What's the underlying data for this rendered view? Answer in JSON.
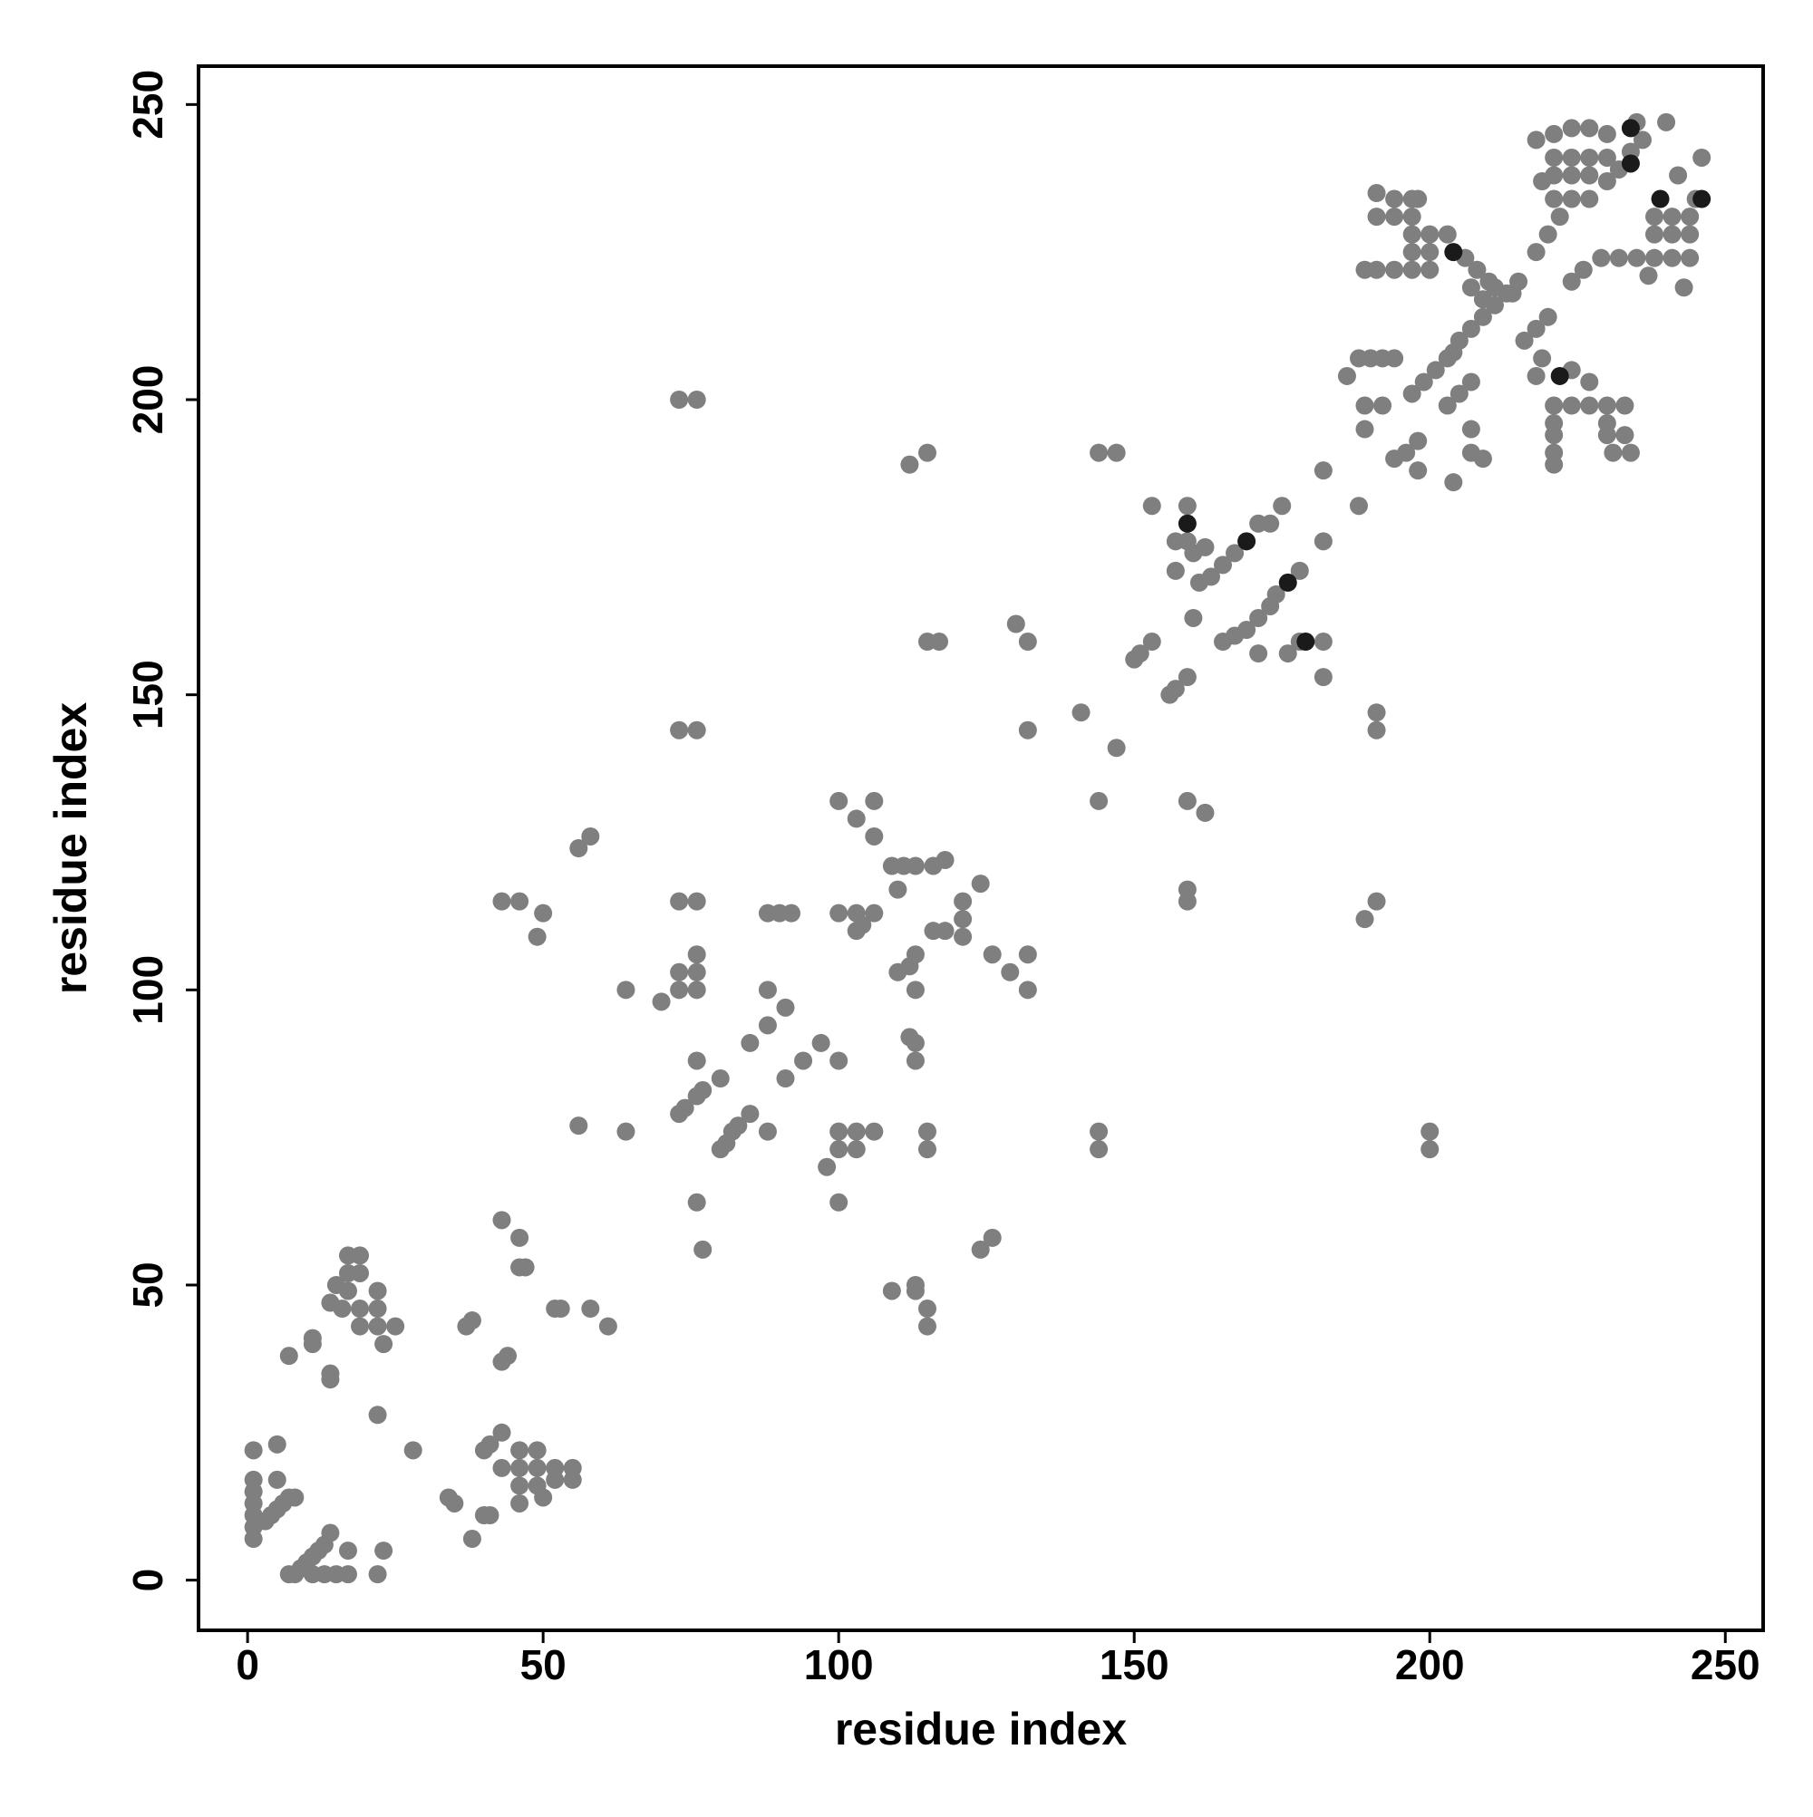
{
  "chart_data": {
    "type": "scatter",
    "xlabel": "residue index",
    "ylabel": "residue index",
    "xlim": [
      -8.3,
      256.4
    ],
    "ylim": [
      -8.5,
      256.5
    ],
    "xticks": [
      0,
      50,
      100,
      150,
      200,
      250
    ],
    "yticks": [
      0,
      50,
      100,
      150,
      200,
      250
    ],
    "grid": false,
    "series": [
      {
        "color": "#7f7f7f",
        "x": [
          1,
          1,
          1,
          1,
          1,
          1,
          1,
          3,
          4,
          5,
          6,
          5,
          5,
          7,
          8,
          7,
          7,
          8,
          9,
          10,
          11,
          12,
          13,
          14,
          13,
          15,
          17,
          17,
          22,
          23,
          11,
          17,
          19,
          17,
          19,
          15,
          17,
          22,
          14,
          16,
          19,
          22,
          19,
          22,
          25,
          23,
          11,
          11,
          14,
          14,
          22,
          28,
          34,
          35,
          38,
          40,
          41,
          40,
          41,
          37,
          38,
          43,
          46,
          46,
          47,
          43,
          44,
          43,
          43,
          46,
          49,
          46,
          49,
          52,
          55,
          46,
          49,
          52,
          55,
          46,
          50,
          53,
          52,
          58,
          61,
          43,
          46,
          50,
          49,
          56,
          58,
          56,
          64,
          64,
          70,
          73,
          76,
          73,
          76,
          73,
          76,
          76,
          73,
          76,
          73,
          76,
          76,
          73,
          74,
          76,
          77,
          80,
          80,
          81,
          82,
          83,
          85,
          85,
          88,
          88,
          88,
          91,
          91,
          94,
          97,
          100,
          88,
          90,
          92,
          76,
          77,
          98,
          100,
          100,
          103,
          103,
          106,
          100,
          100,
          106,
          103,
          106,
          100,
          103,
          106,
          103,
          104,
          109,
          111,
          113,
          116,
          110,
          110,
          112,
          113,
          113,
          112,
          113,
          113,
          116,
          118,
          118,
          121,
          121,
          121,
          124,
          126,
          129,
          132,
          132,
          112,
          115,
          115,
          117,
          115,
          115,
          109,
          113,
          113,
          115,
          115,
          124,
          126,
          130,
          132,
          132,
          141,
          147,
          144,
          144,
          147,
          144,
          144,
          150,
          151,
          153,
          156,
          157,
          159,
          153,
          159,
          157,
          159,
          157,
          160,
          162,
          160,
          161,
          163,
          165,
          167,
          171,
          173,
          175,
          165,
          167,
          169,
          171,
          173,
          174,
          178,
          171,
          176,
          178,
          182,
          182,
          182,
          182,
          159,
          162,
          159,
          159,
          188,
          191,
          191,
          189,
          191,
          200,
          200,
          186,
          188,
          190,
          192,
          194,
          189,
          189,
          192,
          194,
          196,
          198,
          198,
          197,
          199,
          201,
          203,
          204,
          205,
          207,
          209,
          211,
          213,
          215,
          203,
          205,
          207,
          204,
          207,
          207,
          209,
          191,
          194,
          197,
          198,
          191,
          194,
          197,
          197,
          197,
          200,
          200,
          189,
          191,
          194,
          197,
          200,
          203,
          206,
          208,
          210,
          207,
          209,
          211,
          214,
          216,
          218,
          219,
          220,
          218,
          224,
          227,
          221,
          224,
          227,
          230,
          221,
          230,
          233,
          221,
          230,
          233,
          221,
          221,
          231,
          234,
          224,
          226,
          229,
          232,
          235,
          238,
          241,
          244,
          238,
          241,
          244,
          238,
          241,
          244,
          245,
          242,
          246,
          243,
          237,
          218,
          221,
          224,
          227,
          230,
          235,
          240,
          221,
          224,
          227,
          230,
          221,
          224,
          227,
          219,
          221,
          224,
          227,
          222,
          220,
          218,
          230,
          232,
          234,
          236
        ],
        "values": [
          22,
          17,
          15,
          13,
          11,
          9,
          7,
          10,
          11,
          12,
          13,
          23,
          17,
          14,
          14,
          38,
          1,
          1,
          2,
          3,
          4,
          5,
          6,
          8,
          1,
          1,
          1,
          5,
          1,
          5,
          1,
          55,
          55,
          52,
          52,
          50,
          49,
          49,
          47,
          46,
          46,
          46,
          43,
          43,
          43,
          40,
          41,
          40,
          35,
          34,
          28,
          22,
          14,
          13,
          7,
          11,
          11,
          22,
          23,
          43,
          44,
          61,
          58,
          53,
          53,
          37,
          38,
          25,
          19,
          22,
          22,
          19,
          19,
          19,
          19,
          16,
          16,
          17,
          17,
          13,
          14,
          46,
          46,
          46,
          43,
          115,
          115,
          113,
          109,
          124,
          126,
          77,
          100,
          76,
          98,
          200,
          200,
          144,
          144,
          115,
          115,
          106,
          103,
          103,
          100,
          100,
          88,
          79,
          80,
          82,
          83,
          85,
          73,
          74,
          76,
          77,
          79,
          91,
          94,
          100,
          76,
          97,
          85,
          88,
          91,
          88,
          113,
          113,
          113,
          64,
          56,
          70,
          76,
          73,
          76,
          73,
          76,
          64,
          132,
          132,
          129,
          126,
          113,
          113,
          113,
          110,
          111,
          121,
          121,
          121,
          121,
          117,
          103,
          104,
          106,
          100,
          92,
          91,
          88,
          110,
          110,
          122,
          115,
          112,
          109,
          118,
          106,
          103,
          106,
          100,
          189,
          191,
          159,
          159,
          76,
          73,
          49,
          50,
          49,
          46,
          43,
          56,
          58,
          162,
          159,
          144,
          147,
          141,
          132,
          191,
          191,
          76,
          73,
          156,
          157,
          159,
          150,
          151,
          153,
          182,
          182,
          176,
          176,
          171,
          174,
          175,
          163,
          169,
          170,
          172,
          174,
          179,
          179,
          182,
          159,
          160,
          161,
          163,
          165,
          167,
          171,
          157,
          157,
          159,
          159,
          153,
          176,
          188,
          132,
          130,
          117,
          115,
          182,
          147,
          144,
          112,
          115,
          76,
          73,
          204,
          207,
          207,
          207,
          207,
          199,
          195,
          199,
          190,
          191,
          193,
          188,
          201,
          203,
          205,
          207,
          208,
          210,
          212,
          214,
          216,
          218,
          220,
          199,
          201,
          203,
          186,
          195,
          191,
          190,
          235,
          234,
          234,
          234,
          231,
          231,
          231,
          228,
          225,
          228,
          225,
          222,
          222,
          222,
          222,
          222,
          228,
          224,
          222,
          220,
          219,
          217,
          219,
          218,
          210,
          212,
          207,
          214,
          204,
          205,
          203,
          199,
          199,
          199,
          199,
          196,
          196,
          199,
          194,
          194,
          194,
          191,
          189,
          191,
          191,
          220,
          222,
          224,
          224,
          224,
          224,
          224,
          224,
          228,
          228,
          228,
          231,
          231,
          231,
          234,
          238,
          241,
          219,
          221,
          244,
          245,
          246,
          246,
          245,
          247,
          247,
          241,
          241,
          241,
          241,
          238,
          238,
          238,
          237,
          234,
          234,
          234,
          231,
          228,
          225,
          237,
          239,
          242,
          244
        ]
      },
      {
        "color": "#1a1a1a",
        "x": [
          234,
          234,
          239,
          246,
          204,
          222,
          159,
          169,
          176,
          179
        ],
        "values": [
          246,
          240,
          234,
          234,
          225,
          204,
          179,
          176,
          169,
          159
        ]
      }
    ]
  }
}
